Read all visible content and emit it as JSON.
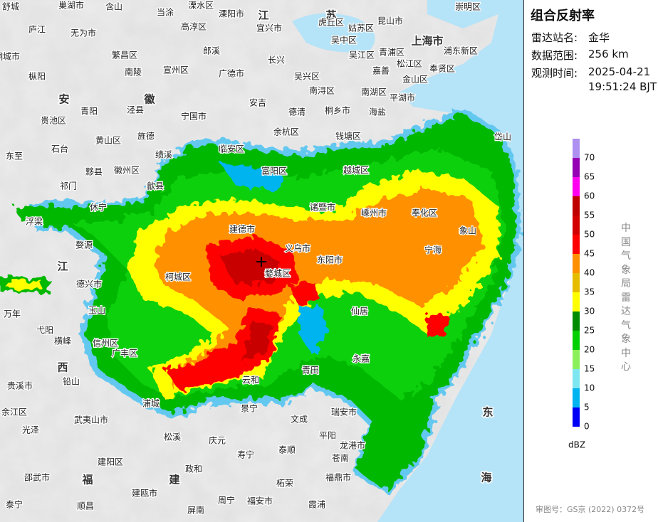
{
  "panel": {
    "title": "组合反射率",
    "rows": [
      {
        "label": "雷达站名:",
        "value": "金华"
      },
      {
        "label": "数据范围:",
        "value": "256 km"
      },
      {
        "label": "观测时间:",
        "value": "2025-04-21",
        "value2": "19:51:24 BJT"
      }
    ],
    "source": "中国气象局雷达气象中心",
    "approval": "审图号：GS京 (2022) 0372号"
  },
  "legend": {
    "unit": "dBZ",
    "levels": [
      {
        "value": 0,
        "color": "#0000f6"
      },
      {
        "value": 5,
        "color": "#00b4f0"
      },
      {
        "value": 10,
        "color": "#7ee6f0"
      },
      {
        "value": 15,
        "color": "#8cf05a"
      },
      {
        "value": 20,
        "color": "#00d000"
      },
      {
        "value": 25,
        "color": "#008c00"
      },
      {
        "value": 30,
        "color": "#ffff00"
      },
      {
        "value": 35,
        "color": "#e6bc00"
      },
      {
        "value": 40,
        "color": "#ff9000"
      },
      {
        "value": 45,
        "color": "#ff0000"
      },
      {
        "value": 50,
        "color": "#d20000"
      },
      {
        "value": 55,
        "color": "#be0000"
      },
      {
        "value": 60,
        "color": "#ff00f0"
      },
      {
        "value": 65,
        "color": "#9600b4"
      },
      {
        "value": 70,
        "color": "#ad90f0"
      }
    ]
  },
  "map": {
    "labels": [
      "舒城",
      "巢湖市",
      "含山",
      "当涂",
      "溧水区",
      "溧阳市",
      "江",
      "苏",
      "虎丘区",
      "姑苏区",
      "昆山市",
      "崇明区",
      "庐江",
      "无为市",
      "高淳区",
      "宜兴市",
      "吴中区",
      "上海市",
      "浦东新区",
      "桐城市",
      "繁昌区",
      "郎溪",
      "长兴",
      "吴江区",
      "青浦区",
      "松江区",
      "嘉善",
      "奉贤区",
      "枞阳",
      "南陵",
      "宣州区",
      "广德市",
      "吴兴区",
      "金山区",
      "安",
      "徽",
      "南浔区",
      "南湖区",
      "平湖市",
      "贵池区",
      "青阳",
      "泾县",
      "宁国市",
      "安吉",
      "德清",
      "桐乡市",
      "海盐",
      "旌德",
      "黄山区",
      "石台",
      "余杭区",
      "钱塘区",
      "岱山",
      "东至",
      "绩溪",
      "临安区",
      "黟县",
      "徽州区",
      "富阳区",
      "越城区",
      "祁门",
      "歙县",
      "休宁",
      "诸暨市",
      "嵊州市",
      "奉化区",
      "象山",
      "浮梁",
      "婺源",
      "建德市",
      "义乌市",
      "东阳市",
      "宁海",
      "江",
      "德兴市",
      "柯城区",
      "婺城区",
      "仙居",
      "万年",
      "玉山",
      "弋阳",
      "横峰",
      "信州区",
      "广丰区",
      "永嘉",
      "西",
      "铅山",
      "青田",
      "贵溪市",
      "云和",
      "浦城",
      "景宁",
      "瑞安市",
      "余江区",
      "文成",
      "光泽",
      "武夷山市",
      "松溪",
      "庆元",
      "平阳",
      "泰顺",
      "寿宁",
      "龙港市",
      "苍南",
      "东",
      "海",
      "建阳区",
      "政和",
      "福",
      "建",
      "福鼎市",
      "柘荣",
      "邵武市",
      "建瓯市",
      "周宁",
      "福安市",
      "霞浦",
      "泰宁",
      "顺昌",
      "屏南"
    ]
  }
}
